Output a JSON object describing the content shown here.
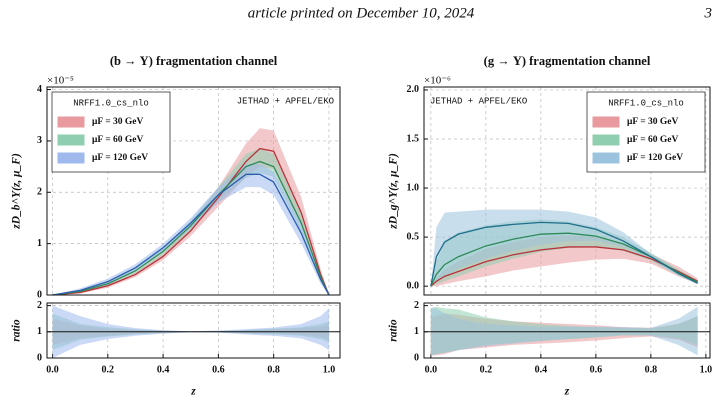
{
  "header": {
    "left": "article    printed on December 10, 2024",
    "page": "3"
  },
  "chart_data": [
    {
      "type": "line",
      "title": "(b → Υ) fragmentation channel",
      "ylabel": "zD_b^Υ(z, μ_F)",
      "xlabel": "z",
      "ratio_label": "ratio",
      "offset_label": "×10⁻⁵",
      "legend_title": "NRFF1.0_cs_nlo",
      "annotation": "JETHAD + APFEL/EKO",
      "legend": "upper left",
      "grid": true,
      "x": [
        0,
        0.1,
        0.2,
        0.3,
        0.4,
        0.5,
        0.6,
        0.7,
        0.75,
        0.8,
        0.9,
        0.97,
        1.0
      ],
      "xlim": [
        -0.02,
        1.04
      ],
      "xticks": [
        {
          "value": 0,
          "label": "0.0"
        },
        0.2,
        0.4,
        0.6,
        0.8,
        {
          "value": 1,
          "label": "1.0"
        }
      ],
      "ylim": [
        0,
        4.05
      ],
      "yticks": [
        0,
        1,
        2,
        3,
        4
      ],
      "ratio_ylim": [
        0,
        2.1
      ],
      "ratio_yticks": [
        0,
        1,
        2
      ],
      "series": [
        {
          "name": "μF = 30 GeV",
          "color": "#b8333a",
          "band_color": "#e89a9e",
          "values": [
            0,
            0.05,
            0.18,
            0.4,
            0.75,
            1.25,
            1.9,
            2.6,
            2.85,
            2.8,
            1.6,
            0.4,
            0
          ],
          "upper": [
            0,
            0.06,
            0.2,
            0.44,
            0.82,
            1.35,
            2.1,
            2.95,
            3.25,
            3.2,
            1.9,
            0.5,
            0
          ],
          "lower": [
            0,
            0.03,
            0.14,
            0.35,
            0.68,
            1.15,
            1.72,
            2.3,
            2.5,
            2.45,
            1.35,
            0.3,
            0
          ],
          "ratio_upper": [
            1.5,
            1.25,
            1.12,
            1.07,
            1.04,
            1.01,
            1.02,
            1.05,
            1.08,
            1.1,
            1.15,
            1.2,
            1.3
          ],
          "ratio_lower": [
            0.5,
            0.75,
            0.85,
            0.92,
            0.96,
            0.99,
            0.98,
            0.95,
            0.94,
            0.93,
            0.88,
            0.8,
            0.7
          ]
        },
        {
          "name": "μF = 60 GeV",
          "color": "#2e8b57",
          "band_color": "#8fcfb0",
          "values": [
            0,
            0.07,
            0.22,
            0.47,
            0.85,
            1.35,
            1.95,
            2.5,
            2.6,
            2.5,
            1.4,
            0.35,
            0
          ],
          "upper": [
            0,
            0.09,
            0.26,
            0.52,
            0.92,
            1.45,
            2.1,
            2.75,
            2.85,
            2.75,
            1.6,
            0.42,
            0
          ],
          "lower": [
            0,
            0.05,
            0.18,
            0.42,
            0.78,
            1.27,
            1.82,
            2.28,
            2.38,
            2.3,
            1.22,
            0.28,
            0
          ],
          "ratio_upper": [
            1.7,
            1.3,
            1.18,
            1.1,
            1.05,
            1.01,
            1.03,
            1.08,
            1.1,
            1.12,
            1.18,
            1.3,
            1.4
          ],
          "ratio_lower": [
            0.3,
            0.7,
            0.82,
            0.9,
            0.95,
            0.99,
            0.98,
            0.93,
            0.91,
            0.9,
            0.85,
            0.72,
            0.6
          ]
        },
        {
          "name": "μF = 120 GeV",
          "color": "#2a5fb0",
          "band_color": "#9fb9ec",
          "values": [
            0,
            0.09,
            0.26,
            0.53,
            0.92,
            1.4,
            1.95,
            2.35,
            2.35,
            2.2,
            1.2,
            0.3,
            0
          ],
          "upper": [
            0,
            0.13,
            0.32,
            0.6,
            1.0,
            1.5,
            2.1,
            2.55,
            2.55,
            2.4,
            1.4,
            0.38,
            0
          ],
          "lower": [
            0,
            0.06,
            0.2,
            0.46,
            0.84,
            1.3,
            1.8,
            2.1,
            2.1,
            1.95,
            1.0,
            0.22,
            0
          ],
          "ratio_upper": [
            2,
            1.6,
            1.3,
            1.14,
            1.06,
            1.02,
            1.05,
            1.1,
            1.13,
            1.16,
            1.3,
            1.6,
            1.9
          ],
          "ratio_lower": [
            0,
            0.5,
            0.72,
            0.85,
            0.93,
            0.98,
            0.97,
            0.9,
            0.87,
            0.85,
            0.75,
            0.5,
            0.3
          ]
        }
      ]
    },
    {
      "type": "line",
      "title": "(g → Υ) fragmentation channel",
      "ylabel": "zD_g^Υ(z, μ_F)",
      "xlabel": "z",
      "ratio_label": "ratio",
      "offset_label": "×10⁻⁶",
      "legend_title": "NRFF1.0_cs_nlo",
      "annotation": "JETHAD + APFEL/EKO",
      "legend": "upper right",
      "grid": true,
      "x": [
        0,
        0.02,
        0.05,
        0.1,
        0.2,
        0.3,
        0.4,
        0.5,
        0.6,
        0.7,
        0.8,
        0.9,
        0.97
      ],
      "xlim": [
        -0.025,
        1.015
      ],
      "xticks": [
        {
          "value": 0,
          "label": "0.0"
        },
        0.2,
        0.4,
        0.6,
        0.8,
        {
          "value": 1,
          "label": "1.0"
        }
      ],
      "ylim": [
        -0.09,
        2.03
      ],
      "yticks": [
        {
          "value": 0,
          "label": "0.0"
        },
        0.5,
        {
          "value": 1,
          "label": "1.0"
        },
        1.5,
        {
          "value": 2,
          "label": "2.0"
        }
      ],
      "ratio_ylim": [
        0,
        2.1
      ],
      "ratio_yticks": [
        0,
        1,
        2
      ],
      "series": [
        {
          "name": "μF = 30 GeV",
          "color": "#b8333a",
          "band_color": "#e89a9e",
          "values": [
            0,
            0.05,
            0.1,
            0.15,
            0.25,
            0.32,
            0.37,
            0.4,
            0.4,
            0.37,
            0.28,
            0.15,
            0.05
          ],
          "upper": [
            0,
            0.08,
            0.17,
            0.25,
            0.38,
            0.45,
            0.5,
            0.52,
            0.5,
            0.44,
            0.33,
            0.2,
            0.08
          ],
          "lower": [
            0,
            0.0,
            0.02,
            0.05,
            0.1,
            0.16,
            0.2,
            0.24,
            0.27,
            0.28,
            0.23,
            0.1,
            0.02
          ],
          "ratio_upper": [
            1.6,
            1.6,
            1.7,
            1.65,
            1.5,
            1.4,
            1.35,
            1.3,
            1.25,
            1.18,
            1.15,
            1.3,
            1.6
          ],
          "ratio_lower": [
            0.1,
            0.1,
            0.15,
            0.3,
            0.4,
            0.5,
            0.55,
            0.6,
            0.67,
            0.76,
            0.82,
            0.7,
            0.4
          ]
        },
        {
          "name": "μF = 60 GeV",
          "color": "#2e8b57",
          "band_color": "#8fcfb0",
          "values": [
            0,
            0.12,
            0.22,
            0.3,
            0.41,
            0.48,
            0.53,
            0.54,
            0.51,
            0.43,
            0.3,
            0.14,
            0.04
          ],
          "upper": [
            0,
            0.25,
            0.45,
            0.55,
            0.62,
            0.66,
            0.68,
            0.66,
            0.6,
            0.5,
            0.34,
            0.17,
            0.06
          ],
          "lower": [
            0,
            0.02,
            0.05,
            0.1,
            0.2,
            0.28,
            0.35,
            0.39,
            0.4,
            0.36,
            0.26,
            0.11,
            0.02
          ],
          "ratio_upper": [
            1.9,
            1.95,
            1.9,
            1.85,
            1.55,
            1.4,
            1.3,
            1.22,
            1.18,
            1.15,
            1.12,
            1.3,
            1.6
          ],
          "ratio_lower": [
            0.1,
            0.15,
            0.2,
            0.3,
            0.5,
            0.58,
            0.66,
            0.72,
            0.78,
            0.86,
            0.87,
            0.75,
            0.5
          ]
        },
        {
          "name": "μF = 120 GeV",
          "color": "#1f6f8b",
          "band_color": "#9cc3dd",
          "values": [
            0,
            0.3,
            0.45,
            0.53,
            0.6,
            0.63,
            0.65,
            0.64,
            0.58,
            0.46,
            0.3,
            0.13,
            0.03
          ],
          "upper": [
            0,
            0.6,
            0.75,
            0.76,
            0.78,
            0.78,
            0.78,
            0.76,
            0.7,
            0.55,
            0.33,
            0.16,
            0.05
          ],
          "lower": [
            0,
            0.05,
            0.1,
            0.18,
            0.28,
            0.36,
            0.42,
            0.46,
            0.46,
            0.4,
            0.27,
            0.11,
            0.02
          ],
          "ratio_upper": [
            1.9,
            1.9,
            1.7,
            1.5,
            1.3,
            1.25,
            1.2,
            1.2,
            1.2,
            1.18,
            1.15,
            1.5,
            1.95
          ],
          "ratio_lower": [
            0.1,
            0.15,
            0.2,
            0.3,
            0.45,
            0.55,
            0.65,
            0.72,
            0.8,
            0.88,
            0.85,
            0.5,
            0.1
          ]
        }
      ]
    }
  ]
}
